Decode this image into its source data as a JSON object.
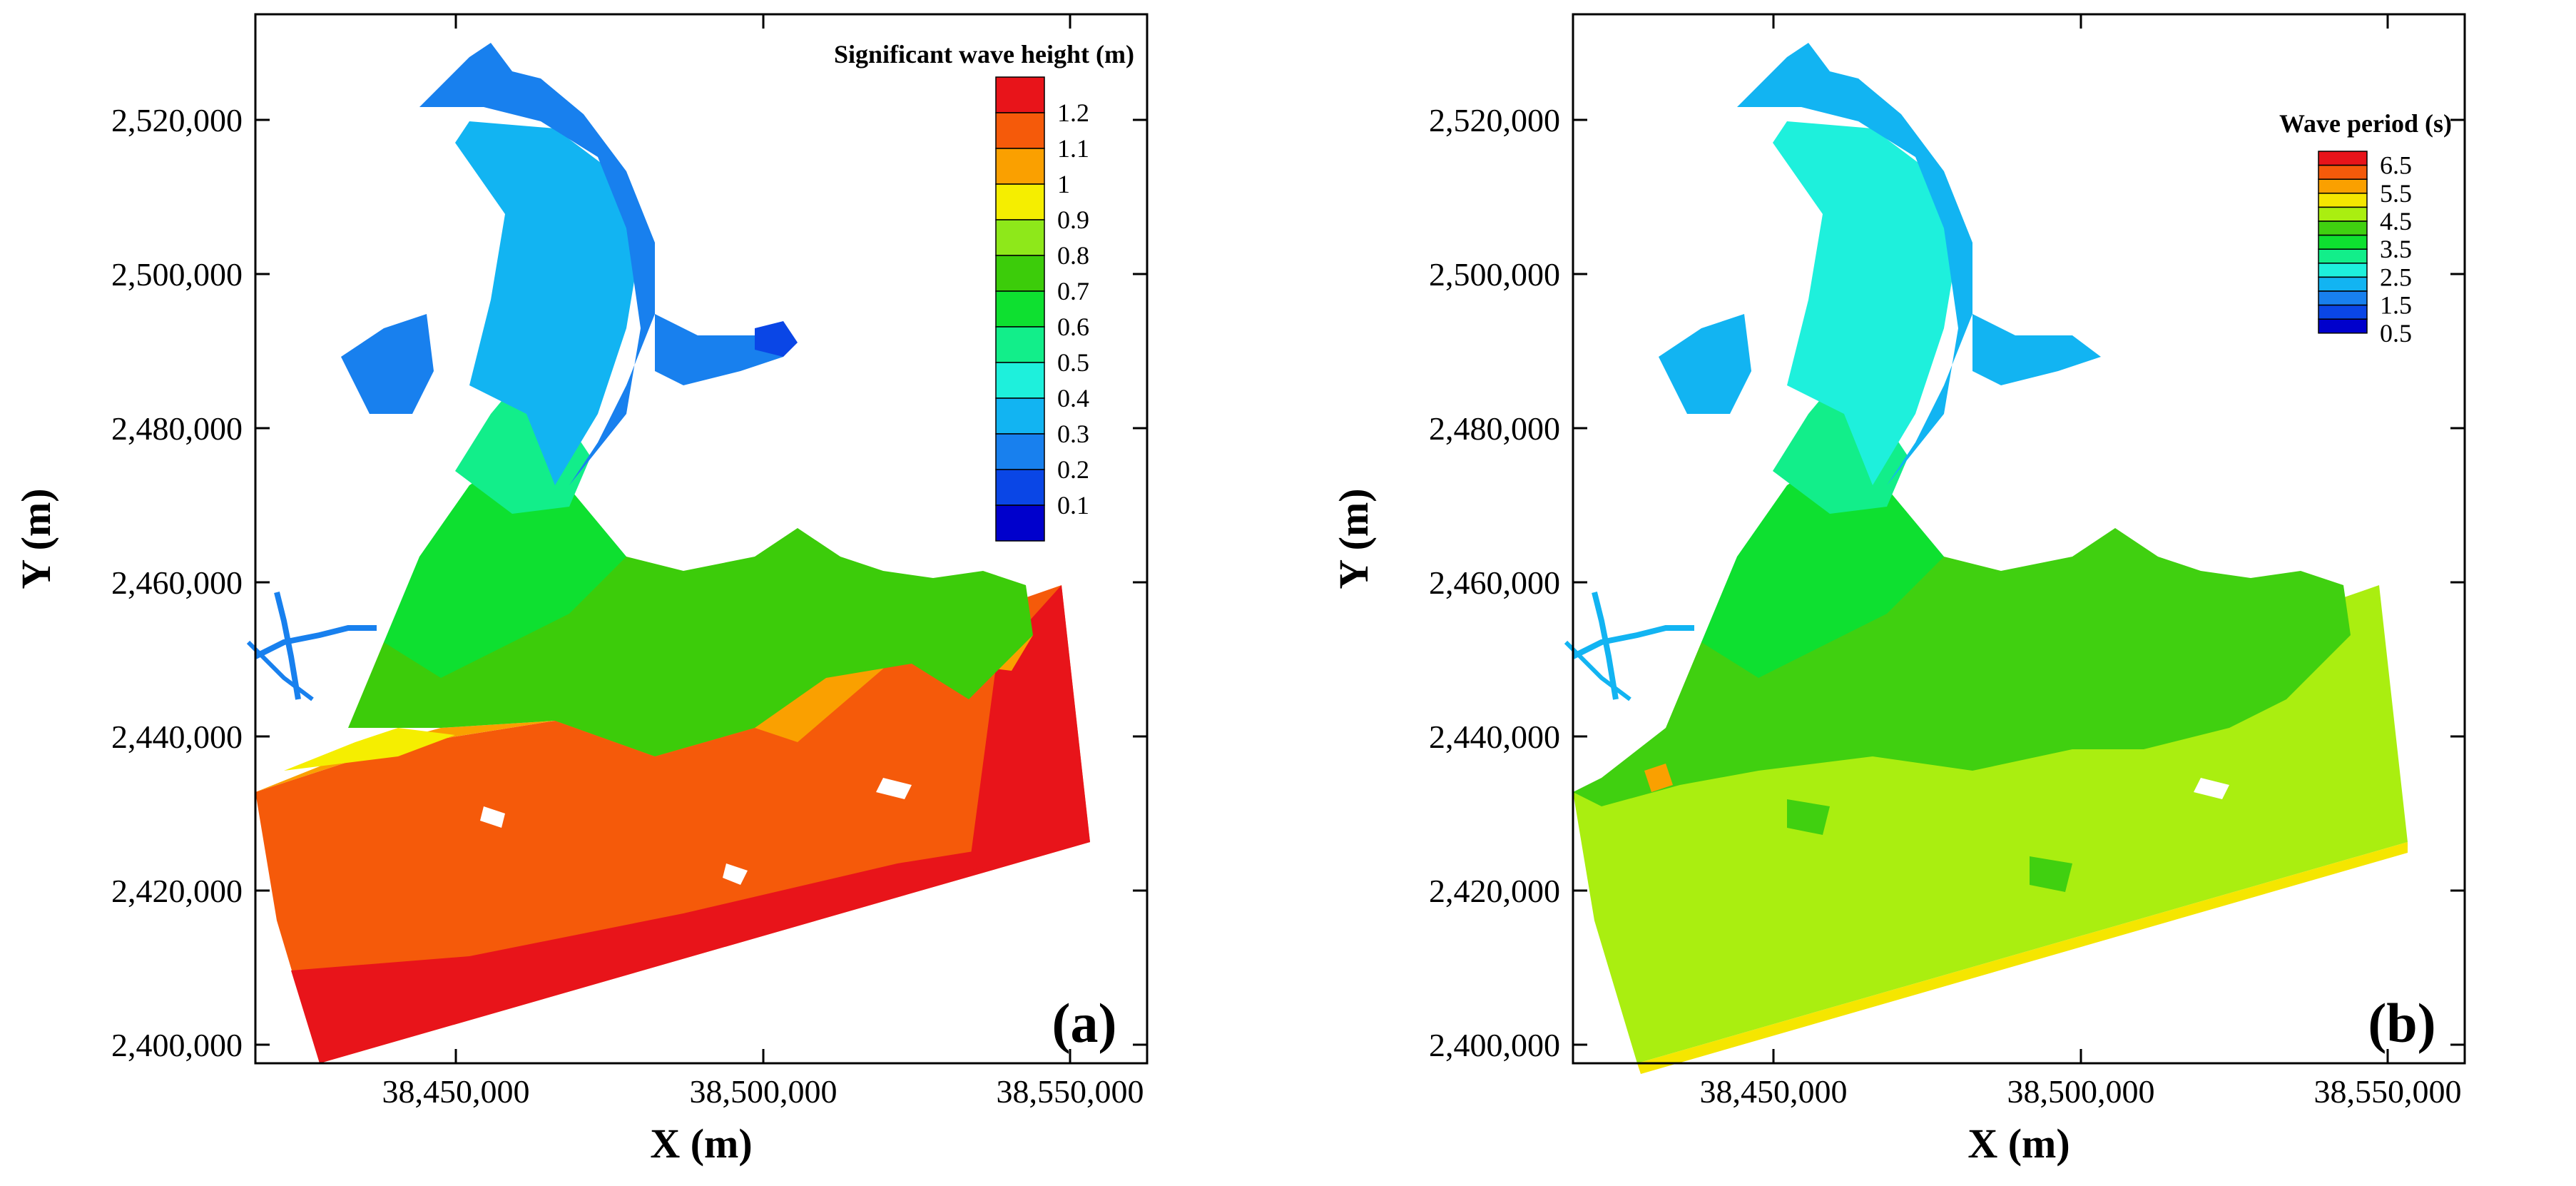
{
  "panels": [
    {
      "id": "a",
      "panel_label": "(a)",
      "xlabel": "X (m)",
      "ylabel": "Y (m)",
      "x_ticks": [
        "38,450,000",
        "38,500,000",
        "38,550,000"
      ],
      "y_ticks": [
        "2,400,000",
        "2,420,000",
        "2,440,000",
        "2,460,000",
        "2,480,000",
        "2,500,000",
        "2,520,000"
      ],
      "legend_title": "Significant wave height (m)",
      "legend_labels": [
        "1.2",
        "1.1",
        "1",
        "0.9",
        "0.8",
        "0.7",
        "0.6",
        "0.5",
        "0.4",
        "0.3",
        "0.2",
        "0.1"
      ],
      "legend_colors": [
        "#e8141a",
        "#f55a0a",
        "#faa000",
        "#f5ee00",
        "#8ee81a",
        "#3ccc0a",
        "#0ee030",
        "#12ee8a",
        "#1ef0dc",
        "#12b4f2",
        "#1880ee",
        "#0a46e6",
        "#0000cc"
      ]
    },
    {
      "id": "b",
      "panel_label": "(b)",
      "xlabel": "X (m)",
      "ylabel": "Y (m)",
      "x_ticks": [
        "38,450,000",
        "38,500,000",
        "38,550,000"
      ],
      "y_ticks": [
        "2,400,000",
        "2,420,000",
        "2,440,000",
        "2,460,000",
        "2,480,000",
        "2,500,000",
        "2,520,000"
      ],
      "legend_title": "Wave period (s)",
      "legend_labels": [
        "6.5",
        "5.5",
        "4.5",
        "3.5",
        "2.5",
        "1.5",
        "0.5"
      ],
      "legend_colors": [
        "#e8141a",
        "#f55a0a",
        "#faa000",
        "#f5e600",
        "#aaee10",
        "#40d010",
        "#0ee030",
        "#12ee8a",
        "#1ef0dc",
        "#12b4f2",
        "#1880ee",
        "#0a46e6",
        "#0000cc"
      ]
    }
  ]
}
